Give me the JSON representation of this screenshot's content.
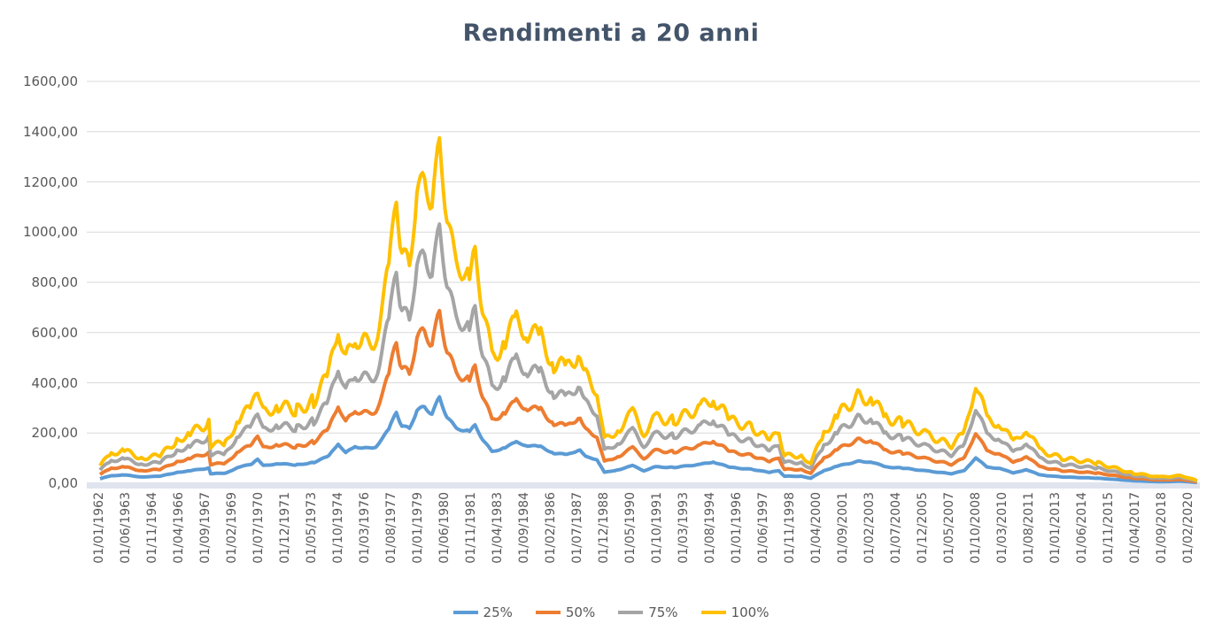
{
  "chart_data": {
    "type": "line",
    "title": "Rendimenti a 20 anni",
    "xlabel": "",
    "ylabel": "",
    "ylim": [
      0,
      1600
    ],
    "y_ticks": [
      "0,00",
      "200,00",
      "400,00",
      "600,00",
      "800,00",
      "1000,00",
      "1200,00",
      "1400,00",
      "1600,00"
    ],
    "y_tick_values": [
      0,
      200,
      400,
      600,
      800,
      1000,
      1200,
      1400,
      1600
    ],
    "grid": true,
    "legend_position": "bottom",
    "x_tick_labels": [
      "01/01/1962",
      "01/06/1963",
      "01/11/1964",
      "01/04/1966",
      "01/09/1967",
      "01/02/1969",
      "01/07/1970",
      "01/12/1971",
      "01/05/1973",
      "01/10/1974",
      "01/03/1976",
      "01/08/1977",
      "01/01/1979",
      "01/06/1980",
      "01/11/1981",
      "01/04/1983",
      "01/09/1984",
      "01/02/1986",
      "01/07/1987",
      "01/12/1988",
      "01/05/1990",
      "01/10/1991",
      "01/03/1993",
      "01/08/1994",
      "01/01/1996",
      "01/06/1997",
      "01/11/1998",
      "01/04/2000",
      "01/09/2001",
      "01/02/2003",
      "01/07/2004",
      "01/12/2005",
      "01/05/2007",
      "01/10/2008",
      "01/03/2010",
      "01/08/2011",
      "01/01/2013",
      "01/06/2014",
      "01/11/2015",
      "01/04/2017",
      "01/09/2018",
      "01/02/2020"
    ],
    "x": [
      1962.0,
      1962.6,
      1963.3,
      1964.2,
      1965.2,
      1966.1,
      1966.8,
      1967.8,
      1967.9,
      1968.7,
      1969.4,
      1970.1,
      1970.4,
      1970.7,
      1971.5,
      1972.5,
      1973.4,
      1974.2,
      1974.7,
      1975.1,
      1975.6,
      1976.0,
      1976.7,
      1977.4,
      1977.8,
      1978.1,
      1978.5,
      1978.9,
      1979.3,
      1979.7,
      1980.1,
      1980.5,
      1981.0,
      1981.7,
      1982.0,
      1982.4,
      1982.9,
      1983.6,
      1984.2,
      1984.8,
      1985.5,
      1986.2,
      1986.9,
      1987.6,
      1987.9,
      1988.5,
      1988.9,
      1989.7,
      1990.4,
      1991.0,
      1991.6,
      1992.6,
      1994.0,
      1994.7,
      1995.6,
      1996.8,
      1997.7,
      1998.2,
      1998.5,
      1999.4,
      1999.9,
      2000.6,
      2001.3,
      2002.5,
      2003.2,
      2003.9,
      2004.8,
      2006.2,
      2007.4,
      2008.1,
      2008.7,
      2009.3,
      2010.0,
      2010.7,
      2011.4,
      2012.1,
      2013.3,
      2015.2,
      2017.1,
      2018.5,
      2019.7,
      2020.5
    ],
    "series": [
      {
        "name": "25%",
        "color": "#5b9bd5",
        "values": [
          18,
          30,
          33,
          25,
          28,
          43,
          50,
          60,
          38,
          40,
          65,
          75,
          98,
          70,
          78,
          73,
          83,
          108,
          158,
          120,
          148,
          138,
          145,
          213,
          285,
          225,
          220,
          288,
          305,
          275,
          343,
          263,
          218,
          208,
          230,
          175,
          125,
          143,
          163,
          150,
          145,
          120,
          113,
          135,
          105,
          95,
          43,
          55,
          70,
          50,
          65,
          63,
          75,
          85,
          63,
          55,
          43,
          50,
          28,
          28,
          20,
          50,
          68,
          88,
          83,
          65,
          60,
          48,
          38,
          50,
          103,
          63,
          60,
          40,
          55,
          33,
          25,
          20,
          10,
          6,
          8,
          3
        ]
      },
      {
        "name": "50%",
        "color": "#ed7d31",
        "values": [
          35,
          60,
          65,
          50,
          55,
          85,
          100,
          120,
          75,
          80,
          130,
          150,
          195,
          140,
          155,
          145,
          165,
          215,
          315,
          240,
          295,
          275,
          290,
          425,
          570,
          450,
          440,
          575,
          610,
          550,
          685,
          525,
          435,
          415,
          460,
          350,
          250,
          285,
          325,
          300,
          290,
          240,
          225,
          270,
          210,
          190,
          85,
          110,
          140,
          100,
          130,
          125,
          150,
          170,
          125,
          110,
          85,
          100,
          55,
          55,
          40,
          100,
          135,
          175,
          165,
          130,
          120,
          95,
          75,
          100,
          205,
          125,
          120,
          80,
          110,
          65,
          50,
          40,
          20,
          13,
          15,
          5
        ]
      },
      {
        "name": "75%",
        "color": "#a5a5a5",
        "values": [
          53,
          90,
          98,
          75,
          83,
          128,
          150,
          180,
          113,
          120,
          195,
          225,
          293,
          210,
          233,
          218,
          248,
          323,
          473,
          360,
          443,
          413,
          435,
          638,
          855,
          675,
          660,
          863,
          915,
          825,
          1028,
          788,
          653,
          623,
          690,
          525,
          375,
          428,
          488,
          450,
          435,
          360,
          338,
          405,
          315,
          285,
          128,
          165,
          210,
          150,
          195,
          188,
          225,
          255,
          188,
          165,
          128,
          150,
          83,
          83,
          60,
          150,
          203,
          263,
          248,
          195,
          180,
          143,
          113,
          150,
          308,
          188,
          180,
          120,
          165,
          98,
          75,
          60,
          30,
          19,
          23,
          8
        ]
      },
      {
        "name": "100%",
        "color": "#ffc000",
        "values": [
          70,
          120,
          130,
          100,
          110,
          170,
          200,
          240,
          150,
          160,
          260,
          300,
          390,
          280,
          310,
          290,
          330,
          430,
          630,
          480,
          590,
          550,
          580,
          850,
          1140,
          900,
          880,
          1150,
          1220,
          1100,
          1370,
          1050,
          870,
          830,
          920,
          700,
          500,
          570,
          650,
          600,
          580,
          480,
          450,
          540,
          420,
          380,
          170,
          220,
          280,
          200,
          260,
          250,
          300,
          340,
          250,
          220,
          170,
          200,
          110,
          110,
          80,
          200,
          270,
          350,
          330,
          260,
          240,
          190,
          150,
          200,
          410,
          250,
          240,
          160,
          220,
          130,
          100,
          80,
          40,
          25,
          30,
          10
        ]
      }
    ]
  }
}
